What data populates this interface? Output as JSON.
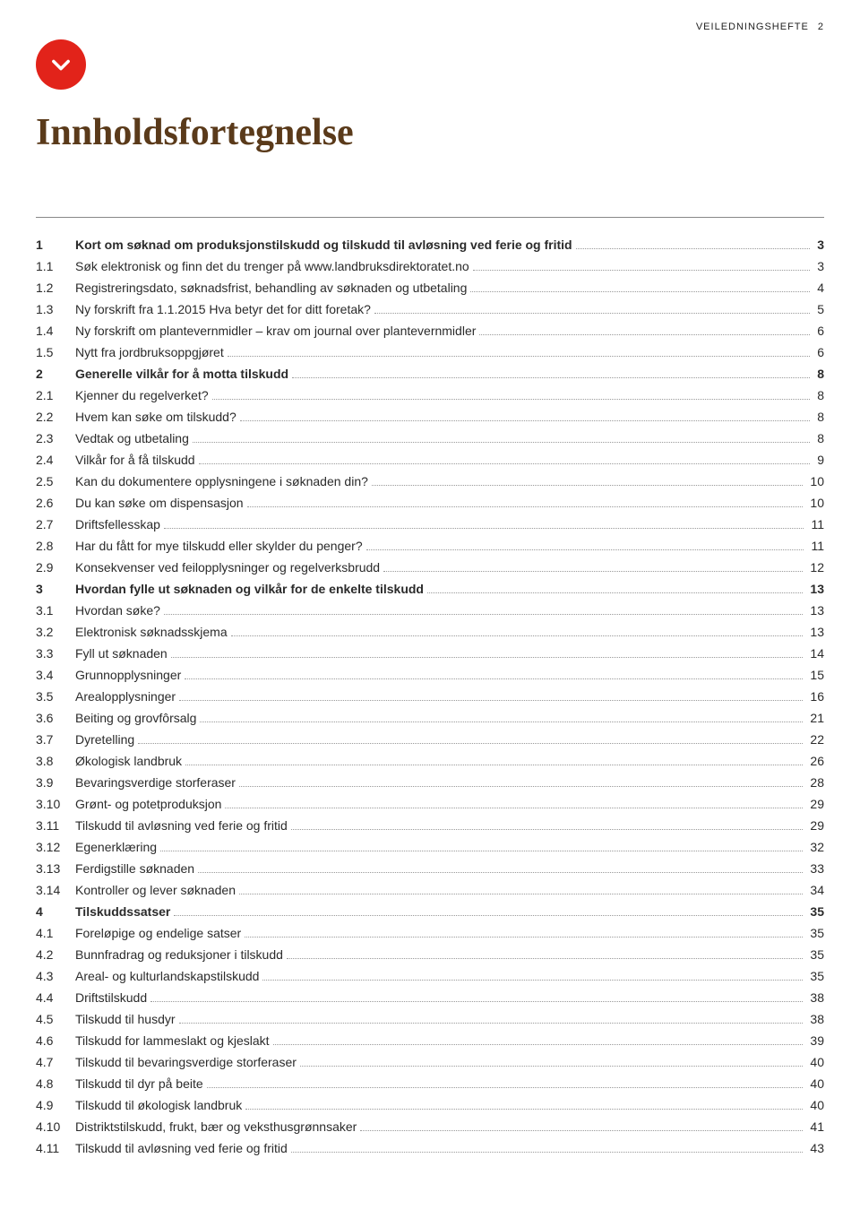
{
  "header": {
    "label": "VEILEDNINGSHEFTE",
    "page": "2"
  },
  "title": "Innholdsfortegnelse",
  "toc": [
    {
      "num": "1",
      "label": "Kort om søknad om produksjonstilskudd og tilskudd til avløsning ved ferie og fritid",
      "page": "3",
      "section": true
    },
    {
      "num": "1.1",
      "label": "Søk elektronisk og finn det du trenger på www.landbruksdirektoratet.no",
      "page": "3"
    },
    {
      "num": "1.2",
      "label": "Registreringsdato, søknadsfrist, behandling av søknaden og utbetaling",
      "page": "4"
    },
    {
      "num": "1.3",
      "label": "Ny forskrift fra 1.1.2015 Hva betyr det for ditt foretak?",
      "page": "5"
    },
    {
      "num": "1.4",
      "label": "Ny forskrift om plantevernmidler – krav om journal over plantevernmidler",
      "page": "6"
    },
    {
      "num": "1.5",
      "label": "Nytt fra jordbruksoppgjøret",
      "page": "6"
    },
    {
      "num": "2",
      "label": "Generelle vilkår for å motta tilskudd",
      "page": "8",
      "section": true
    },
    {
      "num": "2.1",
      "label": "Kjenner du regelverket?",
      "page": "8"
    },
    {
      "num": "2.2",
      "label": "Hvem kan søke om tilskudd?",
      "page": "8"
    },
    {
      "num": "2.3",
      "label": "Vedtak og utbetaling",
      "page": "8"
    },
    {
      "num": "2.4",
      "label": "Vilkår for å få tilskudd",
      "page": "9"
    },
    {
      "num": "2.5",
      "label": "Kan du dokumentere opplysningene i søknaden din?",
      "page": "10"
    },
    {
      "num": "2.6",
      "label": "Du kan søke om dispensasjon",
      "page": "10"
    },
    {
      "num": "2.7",
      "label": "Driftsfellesskap",
      "page": "11"
    },
    {
      "num": "2.8",
      "label": "Har du fått for mye tilskudd eller skylder du penger?",
      "page": "11"
    },
    {
      "num": "2.9",
      "label": "Konsekvenser ved feilopplysninger og regelverksbrudd",
      "page": "12"
    },
    {
      "num": "3",
      "label": "Hvordan fylle ut søknaden og vilkår for de enkelte tilskudd",
      "page": "13",
      "section": true
    },
    {
      "num": "3.1",
      "label": "Hvordan søke?",
      "page": "13"
    },
    {
      "num": "3.2",
      "label": "Elektronisk søknadsskjema",
      "page": "13"
    },
    {
      "num": "3.3",
      "label": "Fyll ut søknaden",
      "page": "14"
    },
    {
      "num": "3.4",
      "label": "Grunnopplysninger",
      "page": "15"
    },
    {
      "num": "3.5",
      "label": "Arealopplysninger",
      "page": "16"
    },
    {
      "num": "3.6",
      "label": "Beiting og grovfôrsalg",
      "page": "21"
    },
    {
      "num": "3.7",
      "label": "Dyretelling",
      "page": "22"
    },
    {
      "num": "3.8",
      "label": "Økologisk landbruk",
      "page": "26"
    },
    {
      "num": "3.9",
      "label": "Bevaringsverdige storferaser",
      "page": "28"
    },
    {
      "num": "3.10",
      "label": "Grønt- og potetproduksjon",
      "page": "29"
    },
    {
      "num": "3.11",
      "label": "Tilskudd til avløsning ved ferie og fritid",
      "page": "29"
    },
    {
      "num": "3.12",
      "label": "Egenerklæring",
      "page": "32"
    },
    {
      "num": "3.13",
      "label": "Ferdigstille søknaden",
      "page": "33"
    },
    {
      "num": "3.14",
      "label": "Kontroller og lever søknaden",
      "page": "34"
    },
    {
      "num": "4",
      "label": "Tilskuddssatser",
      "page": "35",
      "section": true
    },
    {
      "num": "4.1",
      "label": "Foreløpige og endelige satser",
      "page": "35"
    },
    {
      "num": "4.2",
      "label": "Bunnfradrag og reduksjoner i tilskudd",
      "page": "35"
    },
    {
      "num": "4.3",
      "label": "Areal- og kulturlandskapstilskudd",
      "page": "35"
    },
    {
      "num": "4.4",
      "label": "Driftstilskudd",
      "page": "38"
    },
    {
      "num": "4.5",
      "label": "Tilskudd til husdyr",
      "page": "38"
    },
    {
      "num": "4.6",
      "label": "Tilskudd for lammeslakt og kjeslakt",
      "page": "39"
    },
    {
      "num": "4.7",
      "label": "Tilskudd til bevaringsverdige storferaser",
      "page": "40"
    },
    {
      "num": "4.8",
      "label": "Tilskudd til dyr på beite",
      "page": "40"
    },
    {
      "num": "4.9",
      "label": "Tilskudd til økologisk landbruk",
      "page": "40"
    },
    {
      "num": "4.10",
      "label": "Distriktstilskudd, frukt, bær og veksthusgrønnsaker",
      "page": "41"
    },
    {
      "num": "4.11",
      "label": "Tilskudd til avløsning ved ferie og fritid",
      "page": "43"
    }
  ]
}
